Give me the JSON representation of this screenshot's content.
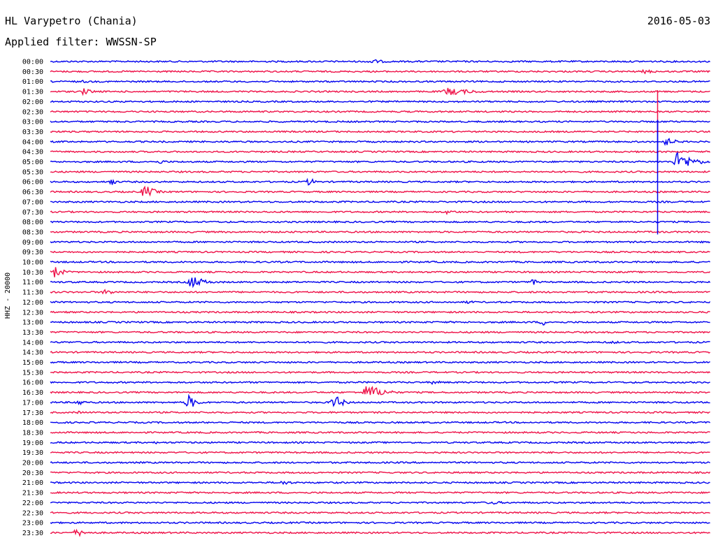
{
  "header": {
    "station": "HL Varypetro (Chania)",
    "date": "2016-05-03",
    "filter": "Applied filter: WWSSN-SP"
  },
  "chart_data": {
    "type": "line",
    "subtype": "helicorder",
    "title": "HL Varypetro (Chania)",
    "subtitle": "Applied filter: WWSSN-SP",
    "date": "2016-05-03",
    "ylabel": "HHZ - 20000",
    "xlabel": "",
    "grid": false,
    "legend": "none",
    "row_minutes": 30,
    "colors": {
      "odd": "#0000ee",
      "even": "#ee1148"
    },
    "rows": [
      "00:00",
      "00:30",
      "01:00",
      "01:30",
      "02:00",
      "02:30",
      "03:00",
      "03:30",
      "04:00",
      "04:30",
      "05:00",
      "05:30",
      "06:00",
      "06:30",
      "07:00",
      "07:30",
      "08:00",
      "08:30",
      "09:00",
      "09:30",
      "10:00",
      "10:30",
      "11:00",
      "11:30",
      "12:00",
      "12:30",
      "13:00",
      "13:30",
      "14:00",
      "14:30",
      "15:00",
      "15:30",
      "16:00",
      "16:30",
      "17:00",
      "17:30",
      "18:00",
      "18:30",
      "19:00",
      "19:30",
      "20:00",
      "20:30",
      "21:00",
      "21:30",
      "22:00",
      "22:30",
      "23:00",
      "23:30"
    ],
    "events": [
      {
        "row": 0,
        "minute": 14.5,
        "amp": 4,
        "dur": 1.5
      },
      {
        "row": 1,
        "minute": 27,
        "amp": 3,
        "dur": 1.5
      },
      {
        "row": 2,
        "minute": 1.5,
        "amp": 2,
        "dur": 1.5
      },
      {
        "row": 3,
        "minute": 1.5,
        "amp": 5,
        "dur": 1
      },
      {
        "row": 3,
        "minute": 18,
        "amp": 6,
        "dur": 2.5
      },
      {
        "row": 8,
        "minute": 28,
        "amp": 6,
        "dur": 1
      },
      {
        "row": 10,
        "minute": 28.5,
        "amp": 14,
        "dur": 1.5
      },
      {
        "row": 10,
        "minute": 5,
        "amp": 3,
        "dur": 1
      },
      {
        "row": 12,
        "minute": 2.8,
        "amp": 7,
        "dur": 0.3
      },
      {
        "row": 12,
        "minute": 11.8,
        "amp": 7,
        "dur": 0.4
      },
      {
        "row": 13,
        "minute": 4.3,
        "amp": 10,
        "dur": 0.9
      },
      {
        "row": 15,
        "minute": 18,
        "amp": 3,
        "dur": 1.5
      },
      {
        "row": 21,
        "minute": 0.2,
        "amp": 9,
        "dur": 0.8
      },
      {
        "row": 22,
        "minute": 6.4,
        "amp": 10,
        "dur": 1.2
      },
      {
        "row": 22,
        "minute": 22,
        "amp": 6,
        "dur": 0.3
      },
      {
        "row": 23,
        "minute": 2.5,
        "amp": 4,
        "dur": 1.2
      },
      {
        "row": 24,
        "minute": 19,
        "amp": 3,
        "dur": 0.6
      },
      {
        "row": 26,
        "minute": 22.4,
        "amp": 5,
        "dur": 0.4
      },
      {
        "row": 28,
        "minute": 25.5,
        "amp": 3,
        "dur": 0.8
      },
      {
        "row": 32,
        "minute": 17.4,
        "amp": 3,
        "dur": 1
      },
      {
        "row": 33,
        "minute": 14.4,
        "amp": 12,
        "dur": 1.5
      },
      {
        "row": 34,
        "minute": 1.3,
        "amp": 5,
        "dur": 0.6
      },
      {
        "row": 34,
        "minute": 6.3,
        "amp": 11,
        "dur": 0.7
      },
      {
        "row": 34,
        "minute": 12.9,
        "amp": 12,
        "dur": 0.8
      },
      {
        "row": 35,
        "minute": 1.3,
        "amp": 2,
        "dur": 1
      },
      {
        "row": 38,
        "minute": 4.8,
        "amp": 2,
        "dur": 0.3
      },
      {
        "row": 42,
        "minute": 10.6,
        "amp": 4,
        "dur": 0.8
      },
      {
        "row": 44,
        "minute": 20,
        "amp": 3,
        "dur": 1.5
      },
      {
        "row": 47,
        "minute": 1.2,
        "amp": 6,
        "dur": 1
      }
    ],
    "spikes": [
      {
        "row": 3,
        "minute": 27.6,
        "dy_up": 2,
        "dy_down": 58
      },
      {
        "row": 6,
        "minute": 27.6,
        "dy_up": 2,
        "dy_down": 58
      },
      {
        "row": 10,
        "minute": 27.6,
        "dy_up": 60,
        "dy_down": 104
      }
    ]
  }
}
